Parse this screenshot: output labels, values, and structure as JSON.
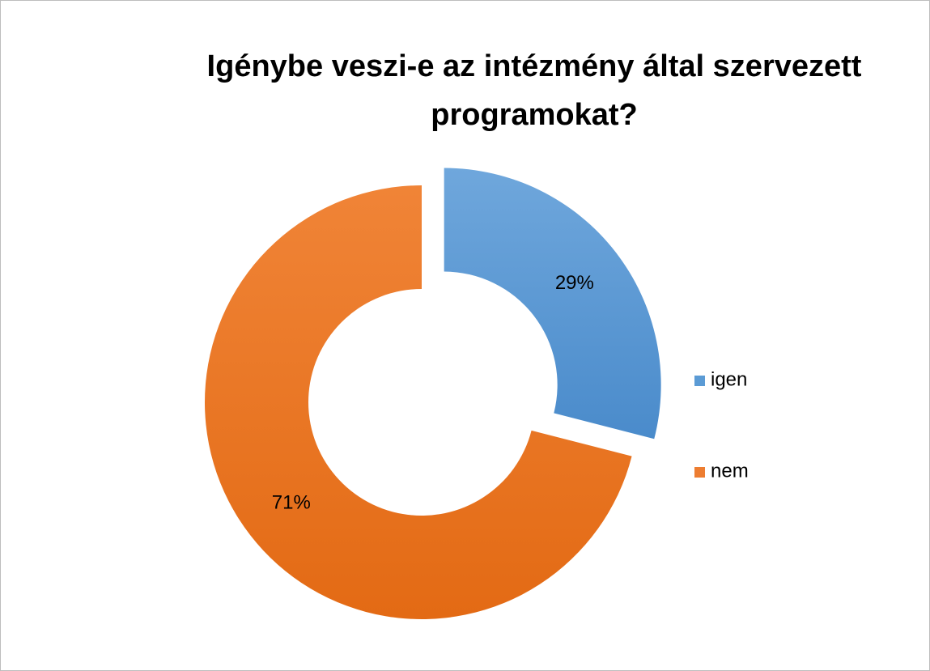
{
  "chart_data": {
    "type": "donut",
    "title": "Igénybe veszi-e az intézmény által szervezett programokat?",
    "categories": [
      "igen",
      "nem"
    ],
    "values": [
      29,
      71
    ],
    "value_labels": [
      "29%",
      "71%"
    ],
    "colors": [
      "#5b9bd5",
      "#ed7d31"
    ],
    "exploded": [
      true,
      false
    ],
    "legend": "right"
  }
}
